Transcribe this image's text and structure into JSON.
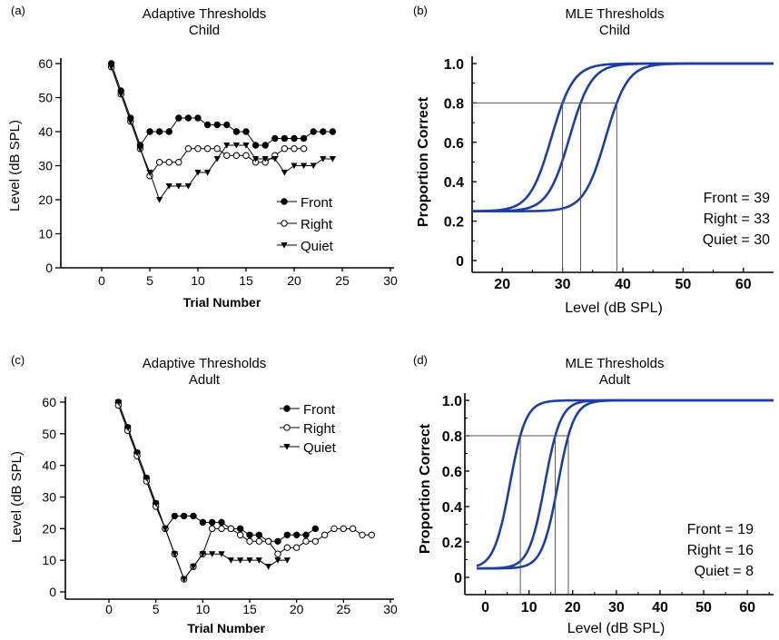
{
  "colors": {
    "ink": "#000000",
    "curve": "#1f3fa0",
    "guide": "#555555"
  },
  "chart_data": [
    {
      "type": "line",
      "panel": "(a)",
      "title": "Adaptive Thresholds",
      "subtitle": "Child",
      "xlabel": "Trial Number",
      "ylabel": "Level (dB SPL)",
      "xlim": [
        -5,
        30
      ],
      "ylim": [
        0,
        60
      ],
      "xticks": [
        0,
        5,
        10,
        15,
        20,
        25,
        30
      ],
      "yticks": [
        0,
        10,
        20,
        30,
        40,
        50,
        60
      ],
      "legend_position": "bottom-right",
      "series": [
        {
          "name": "Front",
          "marker": "filled-circle",
          "x": [
            1,
            2,
            3,
            4,
            5,
            6,
            7,
            8,
            9,
            10,
            11,
            12,
            13,
            14,
            15,
            16,
            17,
            18,
            19,
            20,
            21,
            22,
            23,
            24
          ],
          "y": [
            60,
            52,
            44,
            36,
            40,
            40,
            40,
            44,
            44,
            44,
            42,
            42,
            42,
            40,
            40,
            36,
            36,
            38,
            38,
            38,
            38,
            40,
            40,
            40
          ]
        },
        {
          "name": "Right",
          "marker": "open-circle",
          "x": [
            1,
            2,
            3,
            4,
            5,
            6,
            7,
            8,
            9,
            10,
            11,
            12,
            13,
            14,
            15,
            16,
            17,
            18,
            19,
            20,
            21
          ],
          "y": [
            59,
            51,
            43,
            35,
            27,
            31,
            31,
            31,
            35,
            35,
            35,
            35,
            33,
            33,
            33,
            31,
            31,
            33,
            35,
            35,
            35
          ]
        },
        {
          "name": "Quiet",
          "marker": "filled-triangle-down",
          "x": [
            1,
            2,
            3,
            4,
            5,
            6,
            7,
            8,
            9,
            10,
            11,
            12,
            13,
            14,
            15,
            16,
            17,
            18,
            19,
            20,
            21,
            22,
            23,
            24
          ],
          "y": [
            59,
            51,
            43,
            35,
            28,
            20,
            24,
            24,
            24,
            28,
            28,
            32,
            36,
            36,
            36,
            32,
            32,
            32,
            28,
            30,
            30,
            30,
            32,
            32
          ]
        }
      ]
    },
    {
      "type": "line",
      "panel": "(b)",
      "title": "MLE Thresholds",
      "subtitle": "Child",
      "xlabel": "Level (dB SPL)",
      "ylabel": "Proportion Correct",
      "xlim": [
        15,
        65
      ],
      "ylim": [
        0,
        1.0
      ],
      "xticks": [
        20,
        30,
        40,
        50,
        60
      ],
      "yticks": [
        0,
        0.2,
        0.4,
        0.6,
        0.8,
        1.0
      ],
      "ytick_labels": [
        "0",
        "0.2",
        "0.4",
        "0.6",
        "0.8",
        "1.0"
      ],
      "guide_level": 0.8,
      "floor": 0.25,
      "thresholds": [
        {
          "label": "Front",
          "value": 39
        },
        {
          "label": "Right",
          "value": 33
        },
        {
          "label": "Quiet",
          "value": 30
        }
      ]
    },
    {
      "type": "line",
      "panel": "(c)",
      "title": "Adaptive Thresholds",
      "subtitle": "Adult",
      "xlabel": "Trial Number",
      "ylabel": "Level (dB SPL)",
      "xlim": [
        -5,
        30
      ],
      "ylim": [
        0,
        60
      ],
      "xticks": [
        0,
        5,
        10,
        15,
        20,
        25,
        30
      ],
      "yticks": [
        0,
        10,
        20,
        30,
        40,
        50,
        60
      ],
      "legend_position": "top-right",
      "series": [
        {
          "name": "Front",
          "marker": "filled-circle",
          "x": [
            1,
            2,
            3,
            4,
            5,
            6,
            7,
            8,
            9,
            10,
            11,
            12,
            13,
            14,
            15,
            16,
            17,
            18,
            19,
            20,
            21,
            22
          ],
          "y": [
            60,
            52,
            44,
            36,
            28,
            20,
            24,
            24,
            24,
            22,
            22,
            22,
            20,
            20,
            18,
            18,
            16,
            16,
            18,
            18,
            18,
            20
          ]
        },
        {
          "name": "Right",
          "marker": "open-circle",
          "x": [
            1,
            2,
            3,
            4,
            5,
            6,
            7,
            8,
            9,
            10,
            11,
            12,
            13,
            14,
            15,
            16,
            17,
            18,
            19,
            20,
            21,
            22,
            23,
            24,
            25,
            26,
            27,
            28
          ],
          "y": [
            59,
            51,
            43,
            35,
            27,
            20,
            12,
            4,
            8,
            12,
            20,
            20,
            20,
            18,
            16,
            16,
            16,
            12,
            14,
            14,
            16,
            16,
            18,
            20,
            20,
            20,
            18,
            18
          ]
        },
        {
          "name": "Quiet",
          "marker": "filled-triangle-down",
          "x": [
            1,
            2,
            3,
            4,
            5,
            6,
            7,
            8,
            9,
            10,
            11,
            12,
            13,
            14,
            15,
            16,
            17,
            18,
            19
          ],
          "y": [
            60,
            52,
            44,
            36,
            28,
            20,
            12,
            4,
            8,
            12,
            12,
            12,
            10,
            10,
            10,
            10,
            8,
            10,
            10
          ]
        }
      ]
    },
    {
      "type": "line",
      "panel": "(d)",
      "title": "MLE Thresholds",
      "subtitle": "Adult",
      "xlabel": "Level (dB SPL)",
      "ylabel": "Proportion Correct",
      "xlim": [
        -2,
        66
      ],
      "ylim": [
        0,
        1.0
      ],
      "xticks": [
        0,
        10,
        20,
        30,
        40,
        50,
        60
      ],
      "yticks": [
        0,
        0.2,
        0.4,
        0.6,
        0.8,
        1.0
      ],
      "ytick_labels": [
        "0",
        "0.2",
        "0.4",
        "0.6",
        "0.8",
        "1.0"
      ],
      "guide_level": 0.8,
      "floor": 0.05,
      "thresholds": [
        {
          "label": "Front",
          "value": 19
        },
        {
          "label": "Right",
          "value": 16
        },
        {
          "label": "Quiet",
          "value": 8
        }
      ]
    }
  ]
}
